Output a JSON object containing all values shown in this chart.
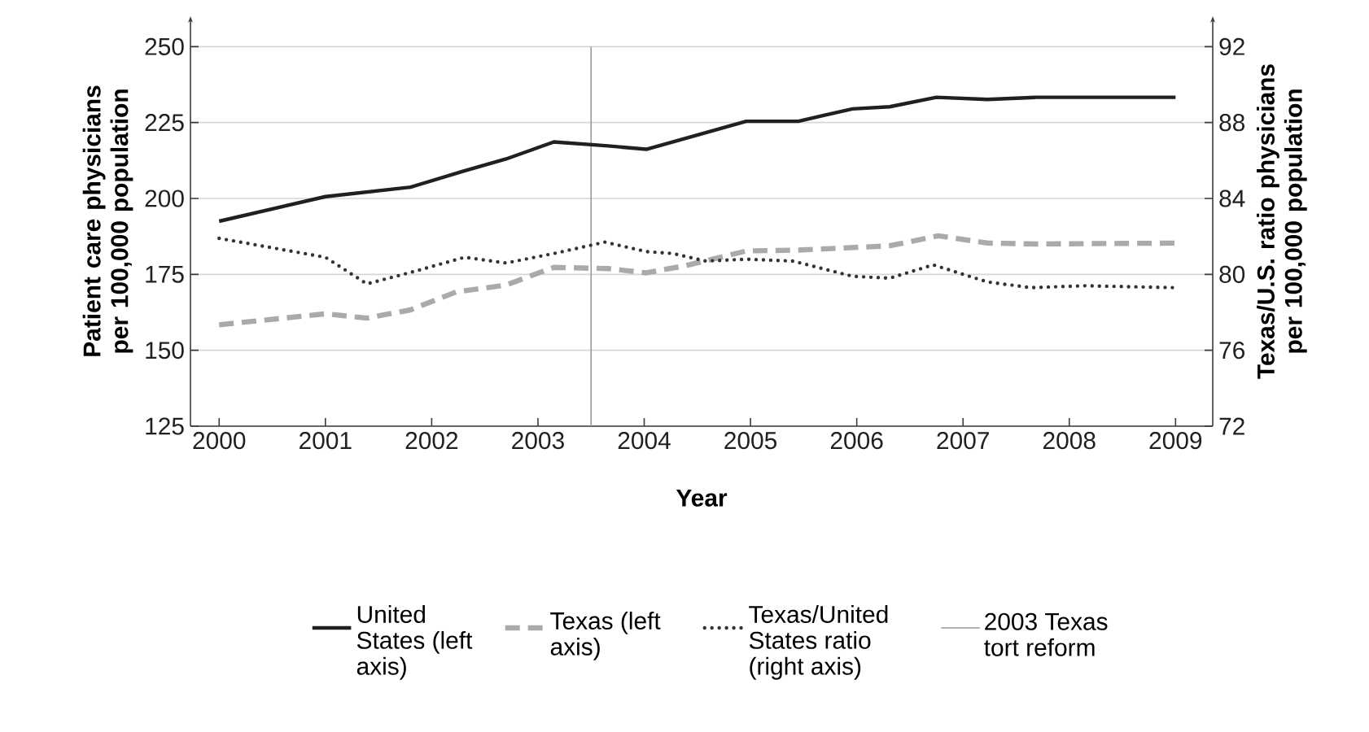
{
  "chart_data": {
    "type": "line",
    "xlabel": "Year",
    "ylabel": "Patient care physicians per 100,000 population",
    "y2label": "Texas/U.S. ratio physicians per 100,000 population",
    "xlim": [
      1999.73,
      2009.35
    ],
    "xticks": [
      2000,
      2001,
      2002,
      2003,
      2004,
      2005,
      2006,
      2007,
      2008,
      2009
    ],
    "ylim": [
      125,
      260
    ],
    "yticks": [
      125,
      150,
      175,
      200,
      225,
      250
    ],
    "y2lim": [
      72,
      93.6
    ],
    "y2ticks": [
      72,
      76,
      80,
      84,
      88,
      92
    ],
    "grid": "y",
    "legend": "bottom",
    "series": [
      {
        "name": "United States (left axis)",
        "color": "#231f20",
        "line_style": "solid",
        "x": [
          2000,
          2001,
          2001.8,
          2002.3,
          2002.7,
          2003.15,
          2003.66,
          2004.02,
          2004.96,
          2005.45,
          2005.96,
          2006.31,
          2006.75,
          2007.23,
          2007.69,
          2009
        ],
        "values": [
          192.5,
          200.6,
          203.7,
          209,
          213,
          218.6,
          217.3,
          216.2,
          225.4,
          225.4,
          229.5,
          230.2,
          233.3,
          232.6,
          233.3,
          233.3
        ]
      },
      {
        "name": "Texas (left axis)",
        "color": "#aaaaaa",
        "line_style": "dashed",
        "x": [
          2000,
          2001,
          2001.39,
          2001.8,
          2002.23,
          2002.7,
          2003.15,
          2003.66,
          2004.02,
          2004.38,
          2004.96,
          2005.45,
          2006.31,
          2006.77,
          2007.23,
          2007.69,
          2009
        ],
        "values": [
          158.4,
          162,
          160.6,
          163.3,
          169.2,
          171.5,
          177.3,
          176.9,
          175.5,
          177.8,
          182.7,
          183,
          184.4,
          187.7,
          185.3,
          185,
          185.3
        ]
      },
      {
        "name": "Texas/United States ratio (right axis)",
        "color": "#333333",
        "line_style": "dotted",
        "axis": "y2",
        "x": [
          2000,
          2001,
          2001.39,
          2001.8,
          2002.31,
          2002.7,
          2003.15,
          2003.63,
          2004.02,
          2004.27,
          2004.58,
          2004.96,
          2005.4,
          2005.96,
          2006.31,
          2006.72,
          2007.23,
          2007.64,
          2008.15,
          2009
        ],
        "values": [
          81.9,
          80.9,
          79.5,
          80.1,
          80.9,
          80.6,
          81.1,
          81.7,
          81.2,
          81.1,
          80.7,
          80.8,
          80.7,
          79.9,
          79.8,
          80.5,
          79.6,
          79.3,
          79.4,
          79.3
        ]
      }
    ],
    "ref_lines": [
      {
        "axis": "x",
        "value": 2003.5,
        "label": "2003 Texas tort reform",
        "color": "#999999",
        "line_style": "solid"
      }
    ]
  }
}
